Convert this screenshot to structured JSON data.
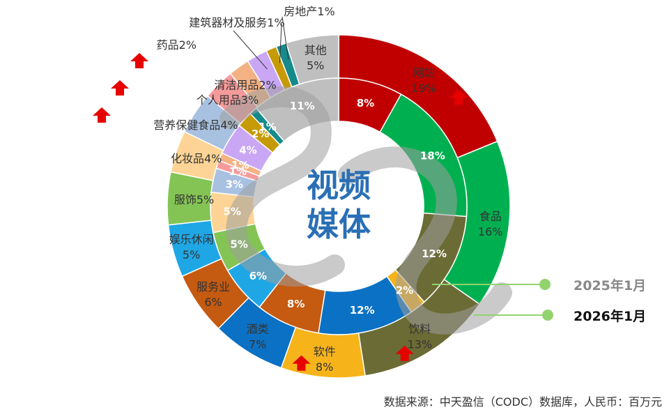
{
  "chart_data": {
    "type": "pie",
    "subtype": "nested-donut",
    "center_title": [
      "视频",
      "媒体"
    ],
    "source_note": "数据来源：中天盈信（CODC）数据库，人民币：百万元",
    "legend": [
      {
        "label": "2025年1月",
        "color": "#888888",
        "line_color": "#92d36e"
      },
      {
        "label": "2026年1月",
        "color": "#111111",
        "line_color": "#92d36e"
      }
    ],
    "series": [
      {
        "name": "2025年1月",
        "ring": "inner",
        "slices": [
          {
            "value": 8,
            "label": "8%",
            "color": "#c00000"
          },
          {
            "value": 18,
            "label": "18%",
            "color": "#00b050"
          },
          {
            "value": 12,
            "label": "12%",
            "color": "#6b6b35"
          },
          {
            "value": 2,
            "label": "2%",
            "color": "#f6b41a"
          },
          {
            "value": 12,
            "label": "12%",
            "color": "#0b71c4"
          },
          {
            "value": 8,
            "label": "8%",
            "color": "#c55a11"
          },
          {
            "value": 6,
            "label": "6%",
            "color": "#1fa7e5"
          },
          {
            "value": 5,
            "label": "5%",
            "color": "#84c455"
          },
          {
            "value": 5,
            "label": "5%",
            "color": "#fdd495"
          },
          {
            "value": 3,
            "label": "3%",
            "color": "#a9c1e1"
          },
          {
            "value": 1,
            "label": "1%",
            "color": "#f49a9a"
          },
          {
            "value": 1,
            "label": "1%",
            "color": "#f4b183"
          },
          {
            "value": 4,
            "label": "4%",
            "color": "#c9a7f5"
          },
          {
            "value": 2,
            "label": "2%",
            "color": "#c69a06"
          },
          {
            "value": 1,
            "label": "1%",
            "color": "#168a8a"
          },
          {
            "value": 11,
            "label": "11%",
            "color": "#bfbfbf"
          }
        ]
      },
      {
        "name": "2026年1月",
        "ring": "outer",
        "slices": [
          {
            "value": 19,
            "name": "网站",
            "label": "19%",
            "color": "#c00000",
            "up": true
          },
          {
            "value": 16,
            "name": "食品",
            "label": "16%",
            "color": "#00b050",
            "up": false
          },
          {
            "value": 13,
            "name": "饮料",
            "label": "13%",
            "color": "#6b6b35",
            "up": true
          },
          {
            "value": 8,
            "name": "软件",
            "label": "8%",
            "color": "#f6b41a",
            "up": true
          },
          {
            "value": 7,
            "name": "酒类",
            "label": "7%",
            "color": "#0b71c4",
            "up": false
          },
          {
            "value": 6,
            "name": "服务业",
            "label": "6%",
            "color": "#c55a11",
            "up": false
          },
          {
            "value": 5,
            "name": "娱乐休闲",
            "label": "5%",
            "color": "#1fa7e5",
            "up": false
          },
          {
            "value": 5,
            "name": "服饰",
            "label": "5%",
            "color": "#84c455",
            "up": false
          },
          {
            "value": 4,
            "name": "化妆品",
            "label": "4%",
            "color": "#fdd495",
            "up": false
          },
          {
            "value": 4,
            "name": "营养保健食品",
            "label": "4%",
            "color": "#a9c1e1",
            "up": true
          },
          {
            "value": 3,
            "name": "个人用品",
            "label": "3%",
            "color": "#f49a9a",
            "up": true
          },
          {
            "value": 2,
            "name": "清洁用品",
            "label": "2%",
            "color": "#f4b183",
            "up": true
          },
          {
            "value": 2,
            "name": "药品",
            "label": "2%",
            "color": "#c9a7f5",
            "up": false
          },
          {
            "value": 1,
            "name": "建筑器材及服务",
            "label": "1%",
            "color": "#c69a06",
            "up": false
          },
          {
            "value": 1,
            "name": "房地产",
            "label": "1%",
            "color": "#168a8a",
            "up": false
          },
          {
            "value": 5,
            "name": "其他",
            "label": "5%",
            "color": "#bfbfbf",
            "up": false
          }
        ]
      }
    ]
  }
}
